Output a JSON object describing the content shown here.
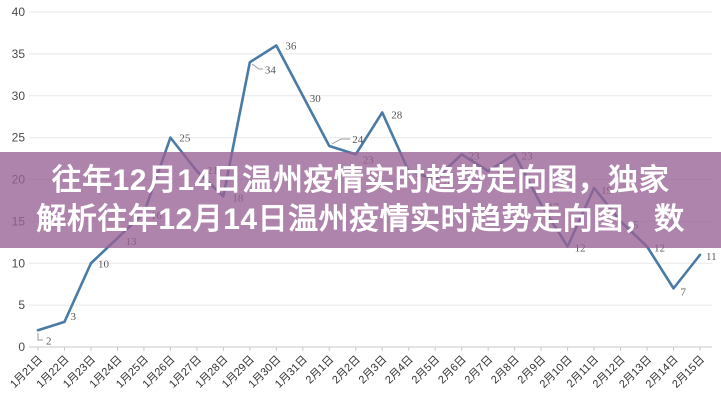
{
  "overlay": {
    "line1": "往年12月14日温州疫情实时趋势走向图，独家",
    "line2": "解析往年12月14日温州疫情实时趋势走向图，数",
    "bg_color": "rgba(153,97,149,0.78)",
    "text_color": "#ffffff"
  },
  "chart_data": {
    "type": "line",
    "title": "",
    "xlabel": "",
    "ylabel": "",
    "x": [
      "1月21日",
      "1月22日",
      "1月23日",
      "1月24日",
      "1月25日",
      "1月26日",
      "1月27日",
      "1月28日",
      "1月29日",
      "1月30日",
      "1月31日",
      "2月1日",
      "2月2日",
      "2月3日",
      "2月4日",
      "2月5日",
      "2月6日",
      "2月7日",
      "2月8日",
      "2月9日",
      "2月10日",
      "2月11日",
      "2月12日",
      "2月13日",
      "2月14日",
      "2月15日"
    ],
    "series": [
      {
        "name": "daily-cases",
        "values": [
          2,
          3,
          10,
          13,
          16,
          25,
          21,
          18,
          34,
          36,
          30,
          24,
          23,
          28,
          21,
          20,
          23,
          21,
          23,
          17,
          12,
          19,
          15,
          12,
          7,
          11
        ]
      }
    ],
    "point_labels_visible": [
      "2",
      "3",
      "10",
      "13",
      "16",
      "25",
      "21",
      "18",
      "34",
      "36",
      "30",
      "24",
      "23",
      "28",
      "23",
      "23",
      "12",
      "19",
      "15",
      "12",
      "7",
      "11"
    ],
    "ylim": [
      0,
      40
    ],
    "yticks": [
      0,
      5,
      10,
      15,
      20,
      25,
      30,
      35,
      40
    ],
    "grid": true,
    "legend": "none",
    "colors": {
      "line": "#4a7aa6",
      "grid": "#e8e8e8",
      "axis": "#c9c9c9",
      "y_tick_label": "#4a4a4a",
      "x_tick_label": "#333333",
      "point_label": "#555555"
    }
  }
}
